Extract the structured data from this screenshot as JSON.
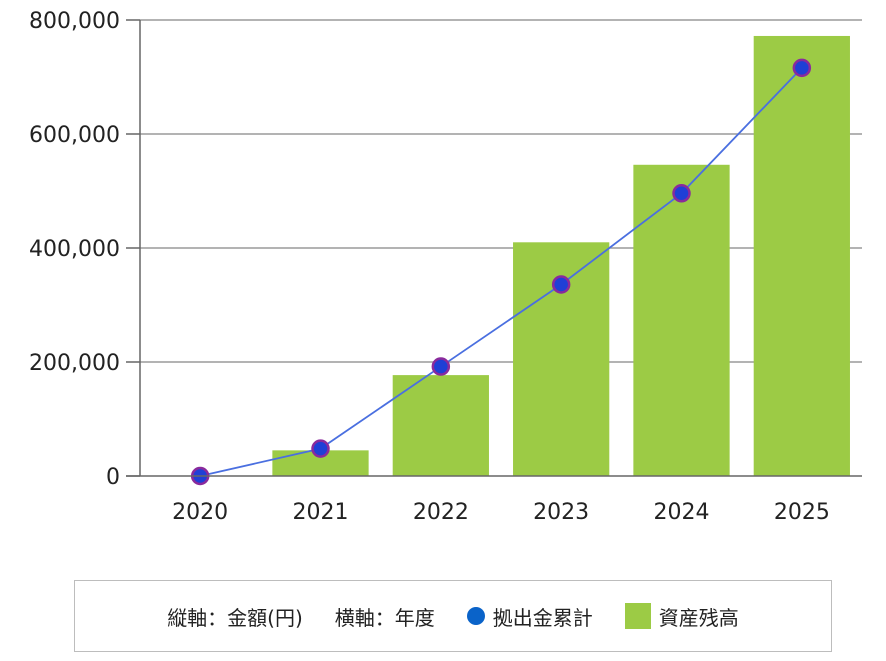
{
  "chart_data": {
    "type": "bar",
    "categories": [
      "2020",
      "2021",
      "2022",
      "2023",
      "2024",
      "2025"
    ],
    "ylim": [
      0,
      800000
    ],
    "yticks": [
      "0",
      "200,000",
      "400,000",
      "600,000",
      "800,000"
    ],
    "ytick_values": [
      0,
      200000,
      400000,
      600000,
      800000
    ],
    "grid": true,
    "legend_position": "bottom",
    "series": [
      {
        "name": "資産残高",
        "kind": "bar",
        "color": "#9ccb45",
        "values": [
          0,
          45000,
          177000,
          410000,
          546000,
          772000
        ]
      },
      {
        "name": "拠出金累計",
        "kind": "line",
        "color": "#0a63c9",
        "values": [
          0,
          48000,
          192000,
          336000,
          496000,
          716000
        ]
      }
    ],
    "legend_notes": {
      "vertical_axis": "縦軸：金額(円)",
      "horizontal_axis": "横軸：年度"
    }
  }
}
